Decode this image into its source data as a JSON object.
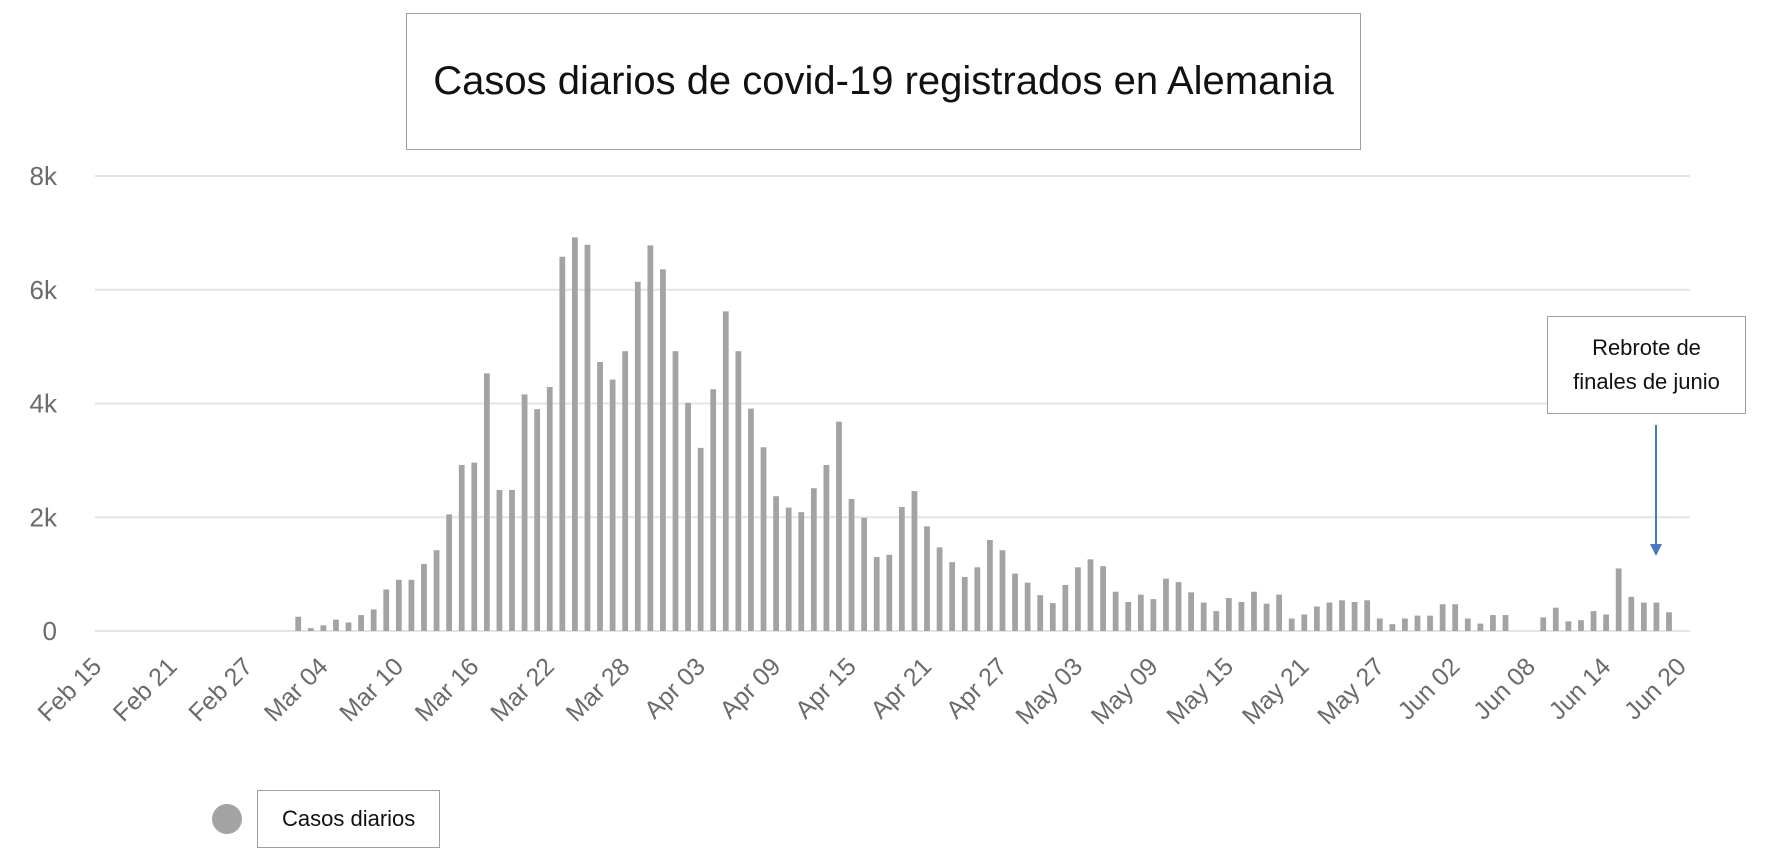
{
  "chart_data": {
    "type": "bar",
    "title": "Casos diarios de covid-19 registrados en Alemania",
    "legend": {
      "label": "Casos diarios",
      "color": "#a3a3a3",
      "placement": "bottom-left"
    },
    "annotation": {
      "text": "Rebrote de finales de junio",
      "target_date": "Jun 16"
    },
    "bar_color": "#a3a3a3",
    "grid": true,
    "ylim": [
      0,
      8000
    ],
    "y_ticks": [
      {
        "value": 0,
        "label": "0"
      },
      {
        "value": 2000,
        "label": "2k"
      },
      {
        "value": 4000,
        "label": "4k"
      },
      {
        "value": 6000,
        "label": "6k"
      },
      {
        "value": 8000,
        "label": "8k"
      }
    ],
    "x_ticks": [
      "Feb 15",
      "Feb 21",
      "Feb 27",
      "Mar 04",
      "Mar 10",
      "Mar 16",
      "Mar 22",
      "Mar 28",
      "Apr 03",
      "Apr 09",
      "Apr 15",
      "Apr 21",
      "Apr 27",
      "May 03",
      "May 09",
      "May 15",
      "May 21",
      "May 27",
      "Jun 02",
      "Jun 08",
      "Jun 14",
      "Jun 20"
    ],
    "x_start": "Feb 15",
    "values": [
      0,
      0,
      0,
      0,
      0,
      0,
      0,
      0,
      0,
      0,
      0,
      0,
      0,
      0,
      0,
      0,
      250,
      50,
      100,
      200,
      150,
      280,
      380,
      730,
      900,
      900,
      1180,
      1420,
      2050,
      2920,
      2960,
      4530,
      2480,
      2480,
      4160,
      3900,
      4290,
      6580,
      6920,
      6790,
      4730,
      4420,
      4920,
      6140,
      6780,
      6360,
      4920,
      4010,
      3220,
      4250,
      5620,
      4920,
      3910,
      3230,
      2370,
      2170,
      2090,
      2510,
      2920,
      3680,
      2320,
      1990,
      1300,
      1340,
      2180,
      2460,
      1840,
      1470,
      1210,
      950,
      1120,
      1600,
      1420,
      1010,
      850,
      630,
      490,
      810,
      1120,
      1260,
      1140,
      690,
      510,
      640,
      560,
      920,
      860,
      680,
      500,
      350,
      580,
      510,
      690,
      480,
      640,
      220,
      290,
      430,
      500,
      540,
      510,
      540,
      220,
      120,
      220,
      270,
      270,
      470,
      470,
      220,
      130,
      280,
      280,
      0,
      0,
      240,
      410,
      170,
      190,
      350,
      290,
      1100,
      600,
      500,
      500,
      330
    ]
  }
}
